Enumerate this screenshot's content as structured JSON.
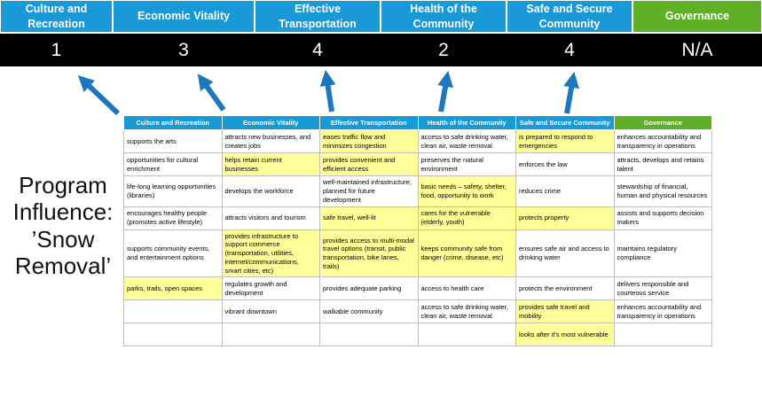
{
  "program_title": {
    "lines": [
      "Program",
      "Influence:",
      "’Snow",
      "Removal’"
    ]
  },
  "scoreboard": {
    "columns": [
      {
        "label": "Culture and\nRecreation",
        "score": "1",
        "color": "header_blue"
      },
      {
        "label": "Economic Vitality",
        "score": "3",
        "color": "header_blue"
      },
      {
        "label": "Effective\nTransportation",
        "score": "4",
        "color": "header_blue"
      },
      {
        "label": "Health of the\nCommunity",
        "score": "2",
        "color": "header_blue"
      },
      {
        "label": "Safe and Secure\nCommunity",
        "score": "4",
        "color": "header_blue"
      },
      {
        "label": "Governance",
        "score": "N/A",
        "color": "header_green"
      }
    ]
  },
  "table": {
    "headers": [
      {
        "label": "Culture and Recreation",
        "color": "header_blue"
      },
      {
        "label": "Economic Vitality",
        "color": "header_blue"
      },
      {
        "label": "Effective Transportation",
        "color": "header_blue"
      },
      {
        "label": "Health of the Community",
        "color": "header_blue"
      },
      {
        "label": "Safe and Secure Community",
        "color": "header_blue"
      },
      {
        "label": "Governance",
        "color": "header_green"
      }
    ],
    "rows": [
      [
        {
          "text": "supports the arts",
          "highlight": false
        },
        {
          "text": "attracts new businesses, and creates jobs",
          "highlight": false
        },
        {
          "text": "eases traffic flow and minimizes congestion",
          "highlight": true
        },
        {
          "text": "access to safe drinking water, clean air, waste removal",
          "highlight": false
        },
        {
          "text": "is prepared to respond to emergencies",
          "highlight": true
        },
        {
          "text": "enhances accountability and transparency in operations",
          "highlight": false
        }
      ],
      [
        {
          "text": "opportunities for cultural enrichment",
          "highlight": false
        },
        {
          "text": "helps retain current businesses",
          "highlight": true
        },
        {
          "text": "provides convenient and efficient access",
          "highlight": true
        },
        {
          "text": "preserves the natural environment",
          "highlight": false
        },
        {
          "text": "enforces the law",
          "highlight": false
        },
        {
          "text": "attracts, develops and retains talent",
          "highlight": false
        }
      ],
      [
        {
          "text": "life-long learning opportunities (libraries)",
          "highlight": false
        },
        {
          "text": "develops the workforce",
          "highlight": false
        },
        {
          "text": "well-maintained infrastructure, planned for future development",
          "highlight": false
        },
        {
          "text": "basic needs – safety, shelter, food, opportunity to work",
          "highlight": true
        },
        {
          "text": "reduces crime",
          "highlight": false
        },
        {
          "text": "stewardship of financial, human and physical resources",
          "highlight": false
        }
      ],
      [
        {
          "text": "encourages healthy people (promotes active lifestyle)",
          "highlight": false
        },
        {
          "text": "attracts visitors and tourism",
          "highlight": false
        },
        {
          "text": "safe travel, well-lit",
          "highlight": true
        },
        {
          "text": "cares for the vulnerable (elderly, youth)",
          "highlight": true
        },
        {
          "text": "protects property",
          "highlight": true
        },
        {
          "text": "assists and supports decision makers",
          "highlight": false
        }
      ],
      [
        {
          "text": "supports community events, and entertainment options",
          "highlight": false
        },
        {
          "text": "provides infrastructure to support commerce (transportation, utilities, internet/communications, smart cities, etc)",
          "highlight": true
        },
        {
          "text": "provides access to multi-modal travel options (transit, public transportation, bike lanes, trails)",
          "highlight": true
        },
        {
          "text": "keeps community safe from danger (crime, disease, etc)",
          "highlight": true
        },
        {
          "text": "ensures safe air and access to drinking water",
          "highlight": false
        },
        {
          "text": "maintains regulatory compliance",
          "highlight": false
        }
      ],
      [
        {
          "text": "parks, trails, open spaces",
          "highlight": true
        },
        {
          "text": "regulates growth and development",
          "highlight": false
        },
        {
          "text": "provides adequate parking",
          "highlight": false
        },
        {
          "text": "access to health care",
          "highlight": false
        },
        {
          "text": "protects the environment",
          "highlight": false
        },
        {
          "text": "delivers responsible and courteous service",
          "highlight": false
        }
      ],
      [
        {
          "text": "",
          "highlight": false
        },
        {
          "text": "vibrant downtown",
          "highlight": false
        },
        {
          "text": "walkable community",
          "highlight": false
        },
        {
          "text": "access to safe drinking water, clean air, waste removal",
          "highlight": false
        },
        {
          "text": "provides safe travel and mobility",
          "highlight": true
        },
        {
          "text": "enhances accountability and transparency in operations",
          "highlight": false
        }
      ],
      [
        {
          "text": "",
          "highlight": false
        },
        {
          "text": "",
          "highlight": false
        },
        {
          "text": "",
          "highlight": false
        },
        {
          "text": "",
          "highlight": false
        },
        {
          "text": "looks after it's most vulnerable",
          "highlight": true
        },
        {
          "text": "",
          "highlight": false
        }
      ]
    ]
  },
  "colors": {
    "header_blue": "#1999D6",
    "header_green": "#5FAF27",
    "score_bg": "#000000",
    "score_text": "#FFFFFF",
    "highlight_yellow": "#FFFF99",
    "arrow_blue": "#1C77BD",
    "grid_gray": "#BFBFBF"
  }
}
